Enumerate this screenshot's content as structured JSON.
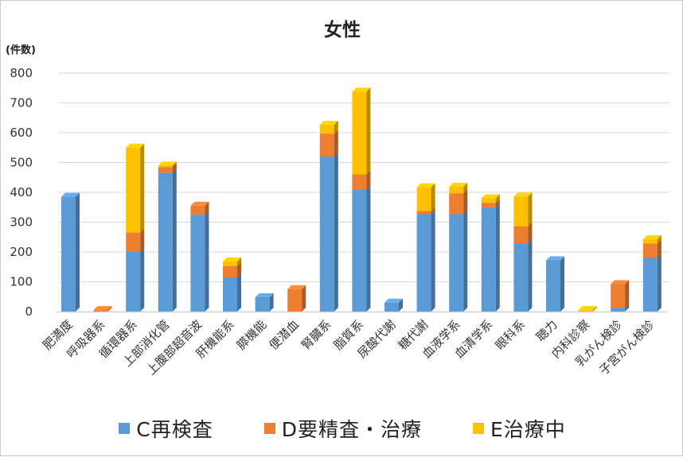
{
  "chart_data": {
    "type": "bar",
    "stacked": true,
    "style": "3d",
    "title": "女性",
    "ylabel": "(件数)",
    "xlabel": "",
    "ylim": [
      0,
      800
    ],
    "yticks": [
      0,
      100,
      200,
      300,
      400,
      500,
      600,
      700,
      800
    ],
    "grid": true,
    "legend_position": "bottom",
    "categories": [
      "肥満度",
      "呼吸器系",
      "循環器系",
      "上部消化管",
      "上腹部超音波",
      "肝機能系",
      "膵機能",
      "便潜血",
      "腎臓系",
      "脂質系",
      "尿酸代謝",
      "糖代謝",
      "血液学系",
      "血清学系",
      "眼科系",
      "聴力",
      "内科診察",
      "乳がん検診",
      "子宮がん検診"
    ],
    "series": [
      {
        "name": "C再検査",
        "color": "#5b9bd5",
        "values": [
          385,
          0,
          200,
          465,
          325,
          115,
          48,
          0,
          520,
          408,
          30,
          327,
          327,
          350,
          228,
          172,
          0,
          12,
          180
        ]
      },
      {
        "name": "D要精査・治療",
        "color": "#ed7d31",
        "values": [
          0,
          5,
          65,
          20,
          30,
          38,
          0,
          75,
          77,
          52,
          0,
          10,
          70,
          15,
          58,
          0,
          0,
          80,
          48
        ]
      },
      {
        "name": "E治療中",
        "color": "#ffc000",
        "values": [
          0,
          0,
          285,
          5,
          0,
          15,
          0,
          0,
          30,
          278,
          0,
          80,
          22,
          15,
          100,
          0,
          5,
          0,
          15
        ]
      }
    ]
  }
}
